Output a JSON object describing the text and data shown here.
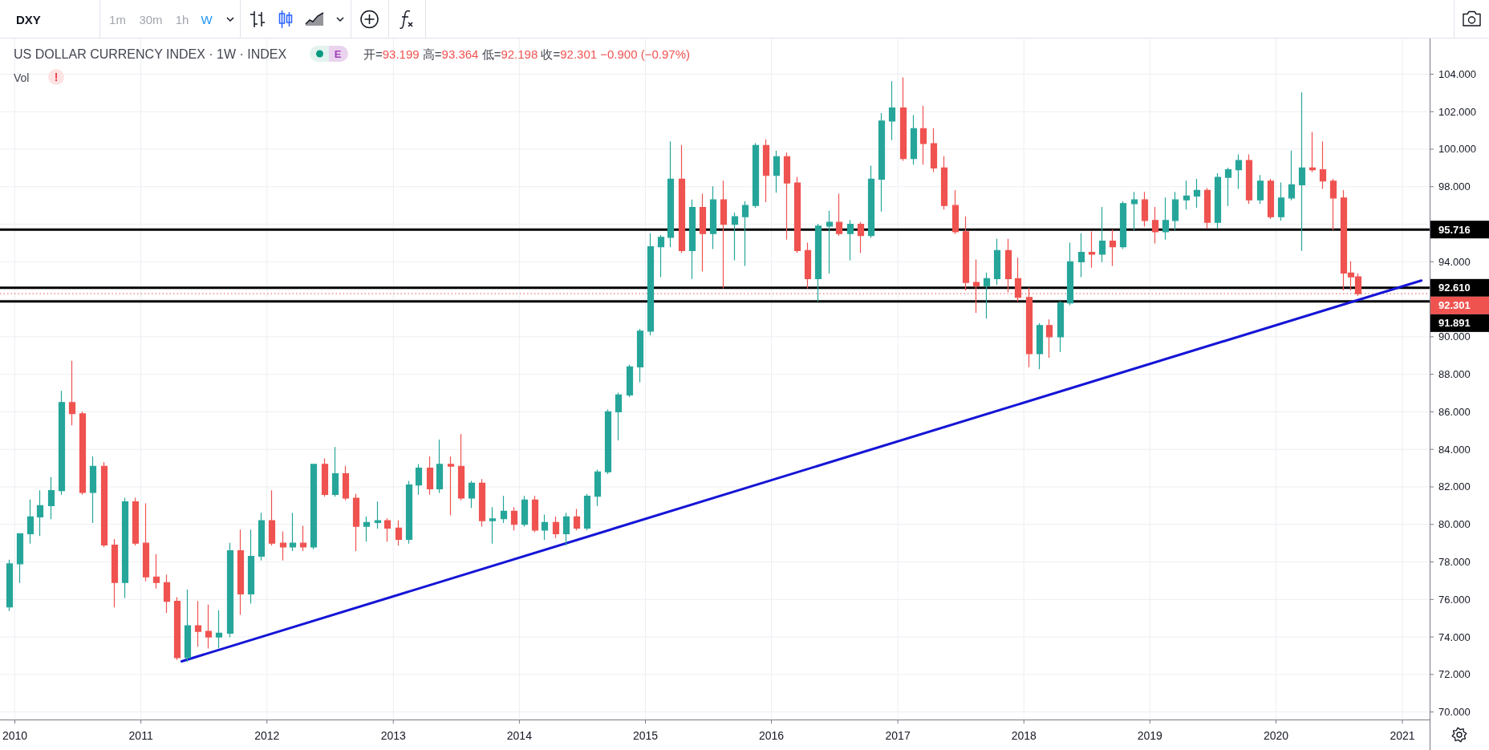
{
  "chart_data": {
    "type": "candlestick",
    "title": "US DOLLAR CURRENCY INDEX · 1W · INDEX",
    "subtitle": "开=93.199 高=93.364 低=92.198 收=92.301 −0.900 (−0.97%)",
    "annotations": [
      "DXY",
      "1m",
      "30m",
      "1h",
      "W",
      "E",
      "Vol",
      "!"
    ],
    "x": [
      "2009-12-15",
      "2010-01-15",
      "2010-02-15",
      "2010-03-15",
      "2010-04-15",
      "2010-05-15",
      "2010-06-15",
      "2010-07-15",
      "2010-08-15",
      "2010-09-15",
      "2010-10-15",
      "2010-11-15",
      "2010-12-15",
      "2011-01-15",
      "2011-02-15",
      "2011-03-15",
      "2011-04-15",
      "2011-05-15",
      "2011-06-15",
      "2011-07-15",
      "2011-08-15",
      "2011-09-15",
      "2011-10-15",
      "2011-11-15",
      "2011-12-15",
      "2012-01-15",
      "2012-02-15",
      "2012-03-15",
      "2012-04-15",
      "2012-05-15",
      "2012-06-15",
      "2012-07-15",
      "2012-08-15",
      "2012-09-15",
      "2012-10-15",
      "2012-11-15",
      "2012-12-15",
      "2013-01-15",
      "2013-02-15",
      "2013-03-15",
      "2013-04-15",
      "2013-05-15",
      "2013-06-15",
      "2013-07-15",
      "2013-08-15",
      "2013-09-15",
      "2013-10-15",
      "2013-11-15",
      "2013-12-15",
      "2014-01-15",
      "2014-02-15",
      "2014-03-15",
      "2014-04-15",
      "2014-05-15",
      "2014-06-15",
      "2014-07-15",
      "2014-08-15",
      "2014-09-15",
      "2014-10-15",
      "2014-11-15",
      "2014-12-15",
      "2015-01-15",
      "2015-02-15",
      "2015-03-15",
      "2015-04-15",
      "2015-05-15",
      "2015-06-15",
      "2015-07-15",
      "2015-08-15",
      "2015-09-15",
      "2015-10-15",
      "2015-11-15",
      "2015-12-15",
      "2016-01-15",
      "2016-02-15",
      "2016-03-15",
      "2016-04-15",
      "2016-05-15",
      "2016-06-15",
      "2016-07-15",
      "2016-08-15",
      "2016-09-15",
      "2016-10-15",
      "2016-11-15",
      "2016-12-15",
      "2017-01-15",
      "2017-02-15",
      "2017-03-15",
      "2017-04-15",
      "2017-05-15",
      "2017-06-15",
      "2017-07-15",
      "2017-08-15",
      "2017-09-15",
      "2017-10-15",
      "2017-11-15",
      "2017-12-15",
      "2018-01-15",
      "2018-02-15",
      "2018-03-15",
      "2018-04-15",
      "2018-05-15",
      "2018-06-15",
      "2018-07-15",
      "2018-08-15",
      "2018-09-15",
      "2018-10-15",
      "2018-11-15",
      "2018-12-15",
      "2019-01-15",
      "2019-02-15",
      "2019-03-15",
      "2019-04-15",
      "2019-05-15",
      "2019-06-15",
      "2019-07-15",
      "2019-08-15",
      "2019-09-15",
      "2019-10-15",
      "2019-11-15",
      "2019-12-15",
      "2020-01-15",
      "2020-02-15",
      "2020-03-15",
      "2020-04-15",
      "2020-05-15",
      "2020-06-15",
      "2020-07-15",
      "2020-08-05",
      "2020-08-24"
    ],
    "ohlc": [
      [
        75.6,
        78.1,
        75.4,
        77.9
      ],
      [
        77.9,
        79.5,
        76.9,
        79.5
      ],
      [
        79.5,
        81.3,
        79.0,
        80.4
      ],
      [
        80.4,
        81.8,
        79.4,
        81.0
      ],
      [
        81.0,
        82.5,
        80.3,
        81.8
      ],
      [
        81.8,
        87.1,
        81.6,
        86.5
      ],
      [
        86.5,
        88.7,
        85.3,
        85.9
      ],
      [
        85.9,
        86.0,
        81.6,
        81.7
      ],
      [
        81.7,
        83.6,
        80.1,
        83.1
      ],
      [
        83.1,
        83.3,
        78.8,
        78.9
      ],
      [
        78.9,
        79.2,
        75.6,
        76.9
      ],
      [
        76.9,
        81.4,
        76.1,
        81.2
      ],
      [
        81.2,
        81.4,
        78.9,
        79.0
      ],
      [
        79.0,
        81.1,
        77.0,
        77.2
      ],
      [
        77.2,
        78.4,
        76.6,
        76.9
      ],
      [
        76.9,
        77.3,
        75.3,
        75.9
      ],
      [
        75.9,
        76.1,
        72.8,
        72.9
      ],
      [
        72.9,
        76.5,
        72.7,
        74.6
      ],
      [
        74.6,
        75.9,
        73.5,
        74.3
      ],
      [
        74.3,
        75.7,
        73.4,
        74.0
      ],
      [
        74.0,
        75.4,
        73.4,
        74.2
      ],
      [
        74.2,
        79.0,
        74.0,
        78.6
      ],
      [
        78.6,
        79.7,
        75.2,
        76.3
      ],
      [
        76.3,
        79.7,
        75.8,
        78.3
      ],
      [
        78.3,
        80.6,
        78.1,
        80.2
      ],
      [
        80.2,
        81.8,
        78.9,
        79.0
      ],
      [
        79.0,
        79.6,
        78.1,
        78.8
      ],
      [
        78.8,
        80.6,
        78.6,
        79.0
      ],
      [
        79.0,
        79.9,
        78.6,
        78.8
      ],
      [
        78.8,
        83.2,
        78.7,
        83.2
      ],
      [
        83.2,
        83.5,
        81.5,
        81.6
      ],
      [
        81.6,
        84.1,
        81.5,
        82.7
      ],
      [
        82.7,
        83.1,
        81.3,
        81.4
      ],
      [
        81.4,
        81.6,
        78.6,
        79.9
      ],
      [
        79.9,
        80.4,
        79.1,
        80.1
      ],
      [
        80.1,
        81.2,
        79.8,
        80.2
      ],
      [
        80.2,
        80.3,
        79.1,
        79.8
      ],
      [
        79.8,
        80.2,
        78.9,
        79.2
      ],
      [
        79.2,
        82.3,
        79.0,
        82.1
      ],
      [
        82.1,
        83.2,
        81.6,
        83.0
      ],
      [
        83.0,
        83.6,
        81.6,
        81.9
      ],
      [
        81.9,
        84.5,
        81.7,
        83.2
      ],
      [
        83.2,
        83.6,
        80.5,
        83.1
      ],
      [
        83.1,
        84.8,
        81.3,
        81.4
      ],
      [
        81.4,
        82.3,
        80.9,
        82.2
      ],
      [
        82.2,
        82.4,
        79.9,
        80.2
      ],
      [
        80.2,
        80.9,
        79.0,
        80.3
      ],
      [
        80.3,
        81.5,
        80.1,
        80.7
      ],
      [
        80.7,
        80.9,
        79.7,
        80.0
      ],
      [
        80.0,
        81.5,
        79.9,
        81.3
      ],
      [
        81.3,
        81.5,
        79.6,
        79.7
      ],
      [
        79.7,
        80.5,
        79.2,
        80.1
      ],
      [
        80.1,
        80.4,
        79.3,
        79.5
      ],
      [
        79.5,
        80.6,
        78.9,
        80.4
      ],
      [
        80.4,
        80.8,
        79.7,
        79.8
      ],
      [
        79.8,
        81.6,
        79.7,
        81.5
      ],
      [
        81.5,
        82.9,
        81.0,
        82.8
      ],
      [
        82.8,
        86.1,
        82.7,
        86.0
      ],
      [
        86.0,
        87.0,
        84.5,
        86.9
      ],
      [
        86.9,
        88.5,
        86.8,
        88.4
      ],
      [
        88.4,
        90.4,
        87.6,
        90.3
      ],
      [
        90.3,
        95.5,
        90.1,
        94.8
      ],
      [
        94.8,
        95.4,
        93.2,
        95.3
      ],
      [
        95.3,
        100.4,
        94.8,
        98.4
      ],
      [
        98.4,
        100.2,
        94.5,
        94.6
      ],
      [
        94.6,
        97.3,
        93.1,
        96.9
      ],
      [
        96.9,
        97.6,
        93.5,
        95.5
      ],
      [
        95.5,
        98.0,
        94.7,
        97.3
      ],
      [
        97.3,
        98.3,
        92.6,
        96.0
      ],
      [
        96.0,
        96.6,
        94.1,
        96.4
      ],
      [
        96.4,
        97.2,
        93.8,
        97.0
      ],
      [
        97.0,
        100.3,
        96.9,
        100.2
      ],
      [
        100.2,
        100.5,
        97.2,
        98.6
      ],
      [
        98.6,
        99.9,
        97.7,
        99.6
      ],
      [
        99.6,
        99.8,
        95.2,
        98.2
      ],
      [
        98.2,
        98.5,
        94.5,
        94.6
      ],
      [
        94.6,
        95.0,
        92.6,
        93.1
      ],
      [
        93.1,
        96.0,
        91.9,
        95.9
      ],
      [
        95.9,
        96.7,
        93.4,
        96.1
      ],
      [
        96.1,
        97.6,
        95.4,
        95.5
      ],
      [
        95.5,
        96.2,
        94.1,
        96.0
      ],
      [
        96.0,
        96.1,
        94.5,
        95.4
      ],
      [
        95.4,
        99.1,
        95.3,
        98.4
      ],
      [
        98.4,
        101.9,
        96.7,
        101.5
      ],
      [
        101.5,
        103.6,
        100.5,
        102.2
      ],
      [
        102.2,
        103.8,
        99.4,
        99.5
      ],
      [
        99.5,
        101.8,
        99.2,
        101.1
      ],
      [
        101.1,
        102.3,
        99.2,
        100.3
      ],
      [
        100.3,
        101.1,
        98.8,
        99.0
      ],
      [
        99.0,
        99.6,
        96.8,
        97.0
      ],
      [
        97.0,
        97.8,
        95.5,
        95.6
      ],
      [
        95.6,
        96.4,
        92.5,
        92.9
      ],
      [
        92.9,
        94.1,
        91.3,
        92.7
      ],
      [
        92.7,
        93.4,
        91.0,
        93.1
      ],
      [
        93.1,
        95.2,
        92.8,
        94.6
      ],
      [
        94.6,
        95.2,
        92.4,
        93.1
      ],
      [
        93.1,
        94.2,
        91.9,
        92.1
      ],
      [
        92.1,
        92.6,
        88.4,
        89.1
      ],
      [
        89.1,
        90.7,
        88.3,
        90.6
      ],
      [
        90.6,
        90.9,
        88.9,
        90.0
      ],
      [
        90.0,
        91.9,
        89.2,
        91.8
      ],
      [
        91.8,
        95.0,
        91.7,
        94.0
      ],
      [
        94.0,
        95.5,
        93.2,
        94.5
      ],
      [
        94.5,
        95.6,
        93.7,
        94.4
      ],
      [
        94.4,
        96.9,
        94.0,
        95.1
      ],
      [
        95.1,
        95.7,
        93.8,
        94.8
      ],
      [
        94.8,
        97.2,
        94.7,
        97.1
      ],
      [
        97.1,
        97.7,
        95.7,
        97.3
      ],
      [
        97.3,
        97.7,
        95.9,
        96.2
      ],
      [
        96.2,
        96.9,
        95.0,
        95.6
      ],
      [
        95.6,
        97.4,
        95.2,
        96.2
      ],
      [
        96.2,
        97.7,
        95.7,
        97.3
      ],
      [
        97.3,
        98.3,
        96.8,
        97.5
      ],
      [
        97.5,
        98.4,
        96.9,
        97.8
      ],
      [
        97.8,
        97.9,
        95.8,
        96.1
      ],
      [
        96.1,
        98.7,
        95.8,
        98.5
      ],
      [
        98.5,
        99.0,
        97.0,
        98.9
      ],
      [
        98.9,
        99.7,
        97.9,
        99.4
      ],
      [
        99.4,
        99.7,
        97.1,
        97.3
      ],
      [
        97.3,
        98.6,
        97.1,
        98.3
      ],
      [
        98.3,
        98.4,
        96.3,
        96.4
      ],
      [
        96.4,
        98.2,
        96.2,
        97.4
      ],
      [
        97.4,
        99.9,
        97.3,
        98.1
      ],
      [
        98.1,
        103.0,
        94.6,
        99.0
      ],
      [
        99.0,
        100.9,
        98.8,
        98.9
      ],
      [
        98.9,
        100.4,
        97.9,
        98.3
      ],
      [
        98.3,
        98.4,
        95.7,
        97.4
      ],
      [
        97.4,
        97.8,
        92.5,
        93.4
      ],
      [
        93.4,
        94.0,
        92.5,
        93.2
      ],
      [
        93.199,
        93.364,
        92.198,
        92.301
      ]
    ],
    "colors": [
      "#26a69a",
      "#26a69a",
      "#26a69a",
      "#26a69a",
      "#26a69a",
      "#26a69a",
      "#ef5350",
      "#ef5350",
      "#26a69a",
      "#ef5350",
      "#ef5350",
      "#26a69a",
      "#ef5350",
      "#ef5350",
      "#ef5350",
      "#ef5350",
      "#ef5350",
      "#26a69a",
      "#ef5350",
      "#ef5350",
      "#26a69a",
      "#26a69a",
      "#ef5350",
      "#26a69a",
      "#26a69a",
      "#ef5350",
      "#ef5350",
      "#26a69a",
      "#ef5350",
      "#26a69a",
      "#ef5350",
      "#26a69a",
      "#ef5350",
      "#ef5350",
      "#26a69a",
      "#26a69a",
      "#ef5350",
      "#ef5350",
      "#26a69a",
      "#26a69a",
      "#ef5350",
      "#26a69a",
      "#ef5350",
      "#ef5350",
      "#26a69a",
      "#ef5350",
      "#26a69a",
      "#26a69a",
      "#ef5350",
      "#26a69a",
      "#ef5350",
      "#26a69a",
      "#ef5350",
      "#26a69a",
      "#ef5350",
      "#26a69a",
      "#26a69a",
      "#26a69a",
      "#26a69a",
      "#26a69a",
      "#26a69a",
      "#26a69a",
      "#26a69a",
      "#26a69a",
      "#ef5350",
      "#26a69a",
      "#ef5350",
      "#26a69a",
      "#ef5350",
      "#26a69a",
      "#26a69a",
      "#26a69a",
      "#ef5350",
      "#26a69a",
      "#ef5350",
      "#ef5350",
      "#ef5350",
      "#26a69a",
      "#26a69a",
      "#ef5350",
      "#26a69a",
      "#ef5350",
      "#26a69a",
      "#26a69a",
      "#26a69a",
      "#ef5350",
      "#26a69a",
      "#ef5350",
      "#ef5350",
      "#ef5350",
      "#ef5350",
      "#ef5350",
      "#ef5350",
      "#26a69a",
      "#26a69a",
      "#ef5350",
      "#ef5350",
      "#ef5350",
      "#26a69a",
      "#ef5350",
      "#26a69a",
      "#26a69a",
      "#26a69a",
      "#ef5350",
      "#26a69a",
      "#ef5350",
      "#26a69a",
      "#26a69a",
      "#ef5350",
      "#ef5350",
      "#26a69a",
      "#26a69a",
      "#26a69a",
      "#26a69a",
      "#ef5350",
      "#26a69a",
      "#26a69a",
      "#26a69a",
      "#ef5350",
      "#26a69a",
      "#ef5350",
      "#26a69a",
      "#26a69a",
      "#26a69a",
      "#ef5350",
      "#ef5350",
      "#ef5350",
      "#ef5350",
      "#ef5350",
      "#ef5350"
    ],
    "series": [
      {
        "type": "line",
        "x": [
          "2011-04-29",
          "2021-02-25"
        ],
        "values": [
          72.7,
          93.0
        ],
        "color": "#1515d6"
      }
    ],
    "xlim": [
      "2009-11-19",
      "2021-03-21"
    ],
    "xticks": [
      "2010",
      "2011",
      "2012",
      "2013",
      "2014",
      "2015",
      "2016",
      "2017",
      "2018",
      "2019",
      "2020",
      "2021"
    ],
    "ylim": [
      69.6,
      105.9
    ],
    "yticks": [
      {
        "value": 70,
        "label": "70.000"
      },
      {
        "value": 72,
        "label": "72.000"
      },
      {
        "value": 74,
        "label": "74.000"
      },
      {
        "value": 76,
        "label": "76.000"
      },
      {
        "value": 78,
        "label": "78.000"
      },
      {
        "value": 80,
        "label": "80.000"
      },
      {
        "value": 82,
        "label": "82.000"
      },
      {
        "value": 84,
        "label": "84.000"
      },
      {
        "value": 86,
        "label": "86.000"
      },
      {
        "value": 88,
        "label": "88.000"
      },
      {
        "value": 90,
        "label": "90.000"
      },
      {
        "value": 92,
        "label": null
      },
      {
        "value": 94,
        "label": "94.000"
      },
      {
        "value": 96,
        "label": null
      },
      {
        "value": 98,
        "label": "98.000"
      },
      {
        "value": 100,
        "label": "100.000"
      },
      {
        "value": 102,
        "label": "102.000"
      },
      {
        "value": 104,
        "label": "104.000"
      }
    ],
    "ref_lines": [
      {
        "axis": "y",
        "value": 95.716,
        "label": "95.716",
        "color": "#000000"
      },
      {
        "axis": "y",
        "value": 92.61,
        "label": "92.610",
        "color": "#000000"
      },
      {
        "axis": "y",
        "value": 91.891,
        "label": "91.891",
        "color": "#000000"
      },
      {
        "axis": "y",
        "value": 92.301,
        "label": "92.301",
        "color": "#ef5350",
        "line_style": "dotted"
      }
    ],
    "grid": true
  }
}
